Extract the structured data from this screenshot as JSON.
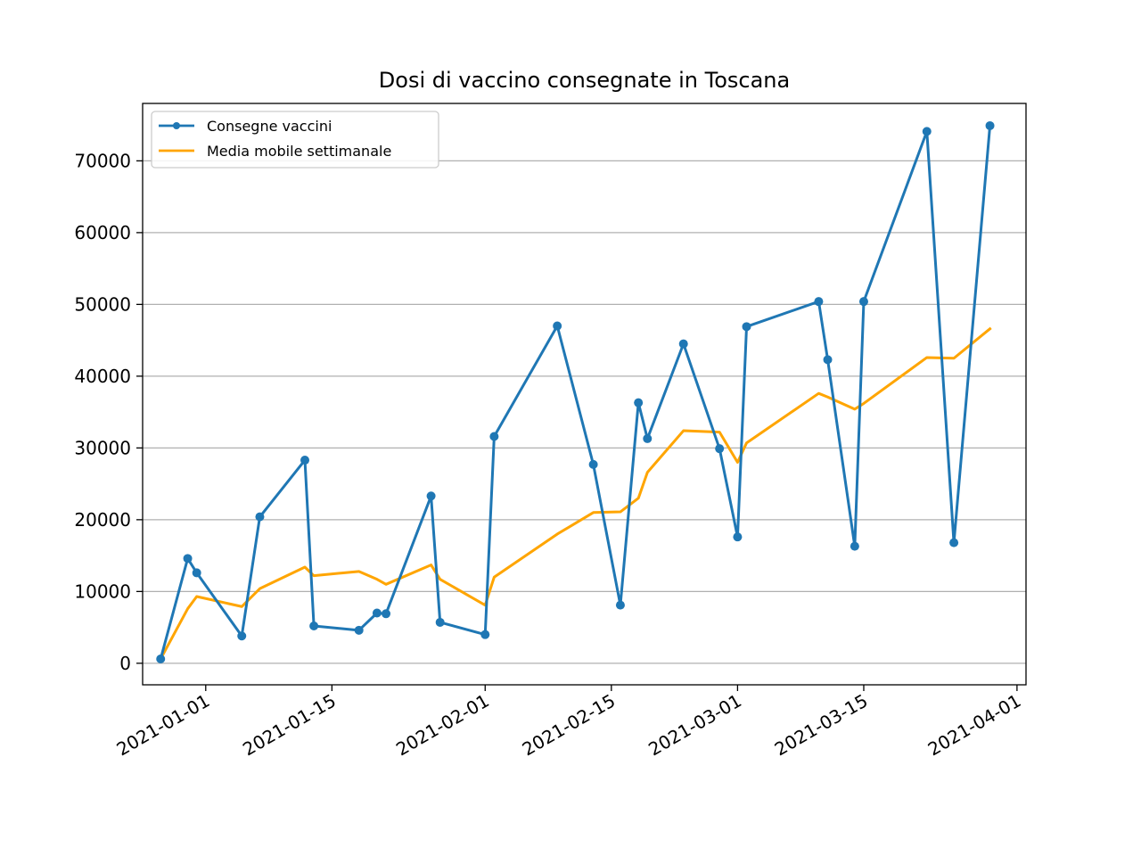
{
  "chart_data": {
    "type": "line",
    "title": "Dosi di vaccino consegnate in Toscana",
    "xlabel": "",
    "ylabel": "",
    "x_axis": {
      "kind": "date",
      "range": [
        "2020-12-25",
        "2021-04-02"
      ],
      "ticks": [
        "2021-01-01",
        "2021-01-15",
        "2021-02-01",
        "2021-02-15",
        "2021-03-01",
        "2021-03-15",
        "2021-04-01"
      ]
    },
    "y_axis": {
      "range": [
        -3000,
        78000
      ],
      "ticks": [
        0,
        10000,
        20000,
        30000,
        40000,
        50000,
        60000,
        70000
      ]
    },
    "grid": "y",
    "legend": {
      "placement": "top-left"
    },
    "series": [
      {
        "name": "Consegne vaccini",
        "color": "#1f77b4",
        "marker": "circle",
        "points": [
          {
            "x": "2020-12-27",
            "y": 600
          },
          {
            "x": "2020-12-30",
            "y": 14600
          },
          {
            "x": "2020-12-31",
            "y": 12600
          },
          {
            "x": "2021-01-05",
            "y": 3800
          },
          {
            "x": "2021-01-07",
            "y": 20400
          },
          {
            "x": "2021-01-12",
            "y": 28300
          },
          {
            "x": "2021-01-13",
            "y": 5200
          },
          {
            "x": "2021-01-18",
            "y": 4600
          },
          {
            "x": "2021-01-20",
            "y": 7000
          },
          {
            "x": "2021-01-21",
            "y": 6900
          },
          {
            "x": "2021-01-26",
            "y": 23300
          },
          {
            "x": "2021-01-27",
            "y": 5700
          },
          {
            "x": "2021-02-01",
            "y": 4000
          },
          {
            "x": "2021-02-02",
            "y": 31600
          },
          {
            "x": "2021-02-09",
            "y": 47000
          },
          {
            "x": "2021-02-13",
            "y": 27700
          },
          {
            "x": "2021-02-16",
            "y": 8100
          },
          {
            "x": "2021-02-18",
            "y": 36300
          },
          {
            "x": "2021-02-19",
            "y": 31300
          },
          {
            "x": "2021-02-23",
            "y": 44500
          },
          {
            "x": "2021-02-27",
            "y": 29900
          },
          {
            "x": "2021-03-01",
            "y": 17600
          },
          {
            "x": "2021-03-02",
            "y": 46900
          },
          {
            "x": "2021-03-10",
            "y": 50400
          },
          {
            "x": "2021-03-11",
            "y": 42300
          },
          {
            "x": "2021-03-14",
            "y": 16300
          },
          {
            "x": "2021-03-15",
            "y": 50400
          },
          {
            "x": "2021-03-22",
            "y": 74100
          },
          {
            "x": "2021-03-25",
            "y": 16800
          },
          {
            "x": "2021-03-29",
            "y": 74900
          }
        ]
      },
      {
        "name": "Media mobile settimanale",
        "color": "#ffa500",
        "marker": "none",
        "points": [
          {
            "x": "2020-12-27",
            "y": 600
          },
          {
            "x": "2020-12-30",
            "y": 7600
          },
          {
            "x": "2020-12-31",
            "y": 9300
          },
          {
            "x": "2021-01-05",
            "y": 7900
          },
          {
            "x": "2021-01-07",
            "y": 10400
          },
          {
            "x": "2021-01-12",
            "y": 13400
          },
          {
            "x": "2021-01-13",
            "y": 12200
          },
          {
            "x": "2021-01-18",
            "y": 12800
          },
          {
            "x": "2021-01-20",
            "y": 11700
          },
          {
            "x": "2021-01-21",
            "y": 11000
          },
          {
            "x": "2021-01-26",
            "y": 13700
          },
          {
            "x": "2021-01-27",
            "y": 11700
          },
          {
            "x": "2021-02-01",
            "y": 8100
          },
          {
            "x": "2021-02-02",
            "y": 12000
          },
          {
            "x": "2021-02-09",
            "y": 18000
          },
          {
            "x": "2021-02-13",
            "y": 21000
          },
          {
            "x": "2021-02-16",
            "y": 21100
          },
          {
            "x": "2021-02-18",
            "y": 23000
          },
          {
            "x": "2021-02-19",
            "y": 26600
          },
          {
            "x": "2021-02-23",
            "y": 32400
          },
          {
            "x": "2021-02-27",
            "y": 32200
          },
          {
            "x": "2021-03-01",
            "y": 28000
          },
          {
            "x": "2021-03-02",
            "y": 30700
          },
          {
            "x": "2021-03-10",
            "y": 37600
          },
          {
            "x": "2021-03-11",
            "y": 37100
          },
          {
            "x": "2021-03-14",
            "y": 35400
          },
          {
            "x": "2021-03-15",
            "y": 36200
          },
          {
            "x": "2021-03-22",
            "y": 42600
          },
          {
            "x": "2021-03-25",
            "y": 42500
          },
          {
            "x": "2021-03-29",
            "y": 46600
          }
        ]
      }
    ]
  }
}
